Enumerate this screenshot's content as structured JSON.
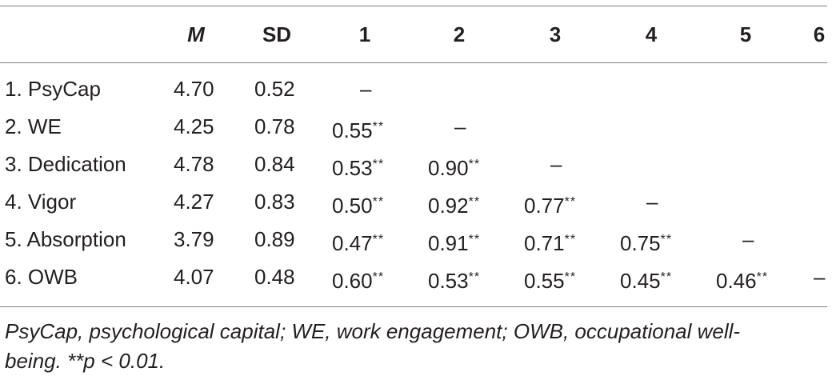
{
  "table": {
    "headers": [
      "",
      "M",
      "SD",
      "1",
      "2",
      "3",
      "4",
      "5",
      "6"
    ],
    "rows": [
      {
        "label": "1. PsyCap",
        "m": "4.70",
        "sd": "0.52",
        "c1": "–"
      },
      {
        "label": "2. WE",
        "m": "4.25",
        "sd": "0.78",
        "c1": "0.55",
        "c1_sig": "**",
        "c2": "–"
      },
      {
        "label": "3. Dedication",
        "m": "4.78",
        "sd": "0.84",
        "c1": "0.53",
        "c1_sig": "**",
        "c2": "0.90",
        "c2_sig": "**",
        "c3": "–"
      },
      {
        "label": "4. Vigor",
        "m": "4.27",
        "sd": "0.83",
        "c1": "0.50",
        "c1_sig": "**",
        "c2": "0.92",
        "c2_sig": "**",
        "c3": "0.77",
        "c3_sig": "**",
        "c4": "–"
      },
      {
        "label": "5. Absorption",
        "m": "3.79",
        "sd": "0.89",
        "c1": "0.47",
        "c1_sig": "**",
        "c2": "0.91",
        "c2_sig": "**",
        "c3": "0.71",
        "c3_sig": "**",
        "c4": "0.75",
        "c4_sig": "**",
        "c5": "–"
      },
      {
        "label": "6. OWB",
        "m": "4.07",
        "sd": "0.48",
        "c1": "0.60",
        "c1_sig": "**",
        "c2": "0.53",
        "c2_sig": "**",
        "c3": "0.55",
        "c3_sig": "**",
        "c4": "0.45",
        "c4_sig": "**",
        "c5": "0.46",
        "c5_sig": "**",
        "c6": "–"
      }
    ],
    "footnote_line1": "PsyCap, psychological capital; WE, work engagement; OWB, occupational well-",
    "footnote_line2": "being. **p < 0.01."
  },
  "colors": {
    "text": "#231f20",
    "rule": "#7f7f7f",
    "background": "#ffffff"
  }
}
